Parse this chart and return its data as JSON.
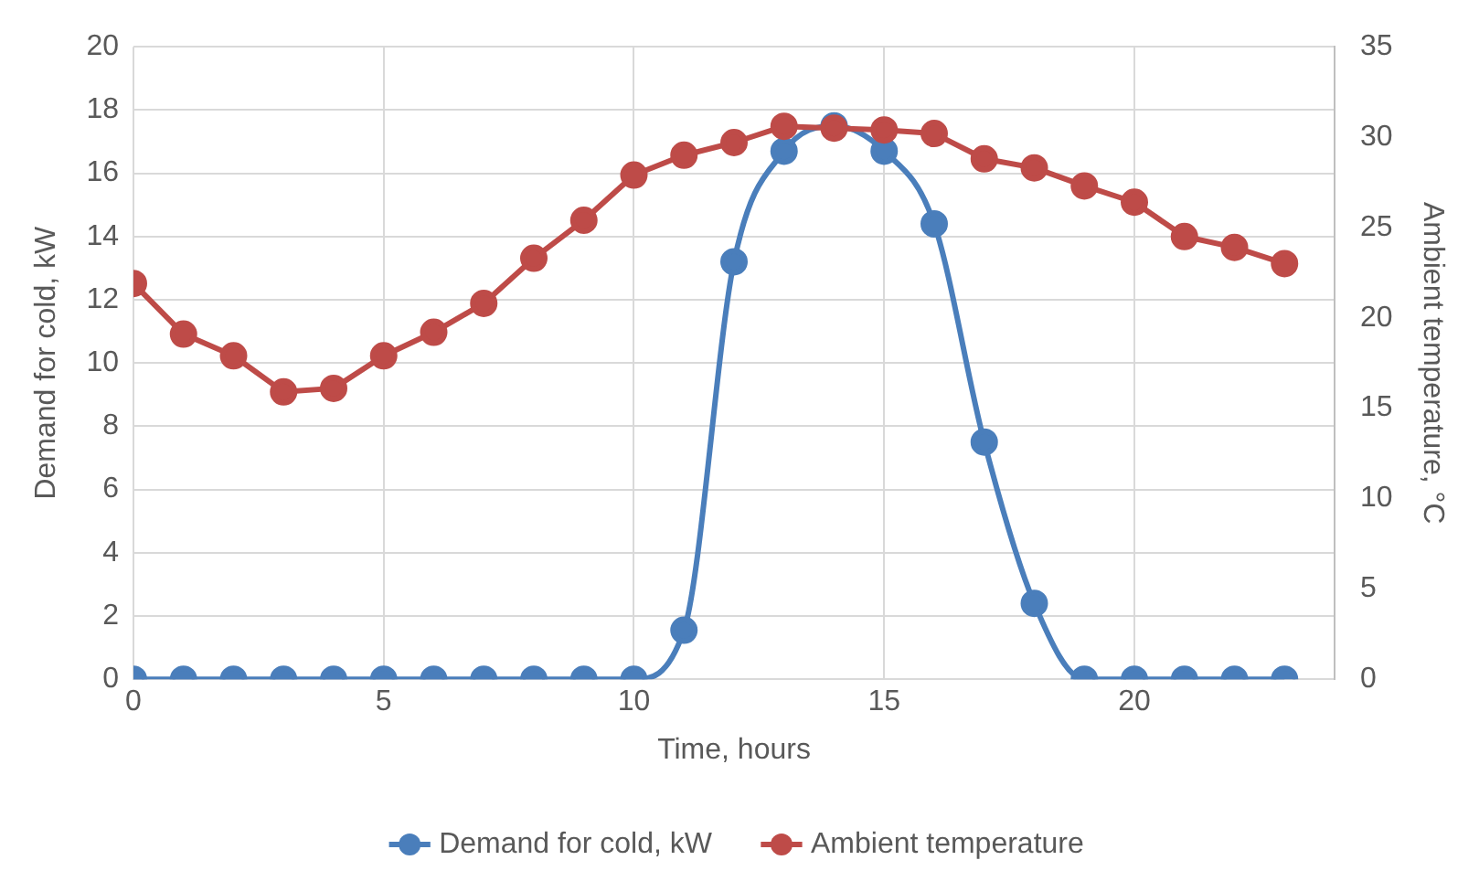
{
  "chart_data": {
    "type": "line",
    "xlabel": "Time, hours",
    "ylabel": "Demand for cold, kW",
    "y2label": "Ambient temperature, °C",
    "x": [
      0,
      1,
      2,
      3,
      4,
      5,
      6,
      7,
      8,
      9,
      10,
      11,
      12,
      13,
      14,
      15,
      16,
      17,
      18,
      19,
      20,
      21,
      22,
      23
    ],
    "series": [
      {
        "name": "Demand for cold, kW",
        "color": "#4a7ebb",
        "values": [
          0,
          0,
          0,
          0,
          0,
          0,
          0,
          0,
          0,
          0,
          0,
          1.55,
          13.2,
          16.7,
          17.5,
          16.7,
          14.4,
          7.5,
          2.4,
          0,
          0,
          0,
          0,
          0
        ]
      },
      {
        "name": "Ambient temperature",
        "color": "#be4b48",
        "axis": "y2",
        "values": [
          21.9,
          19.1,
          17.9,
          15.9,
          16.1,
          17.9,
          19.2,
          20.8,
          23.3,
          25.4,
          27.9,
          29.0,
          29.7,
          30.6,
          30.5,
          30.4,
          30.2,
          28.8,
          28.3,
          27.3,
          26.4,
          24.5,
          23.9,
          23.0
        ]
      }
    ],
    "xlim": [
      0,
      24
    ],
    "xticks": [
      0,
      5,
      10,
      15,
      20
    ],
    "ylim": [
      0,
      20
    ],
    "yticks": [
      0,
      2,
      4,
      6,
      8,
      10,
      12,
      14,
      16,
      18,
      20
    ],
    "y2lim": [
      0,
      35
    ],
    "y2ticks": [
      0,
      5,
      10,
      15,
      20,
      25,
      30,
      35
    ],
    "grid": true,
    "legend": "bottom",
    "marker": "circle",
    "line_style": "solid"
  }
}
